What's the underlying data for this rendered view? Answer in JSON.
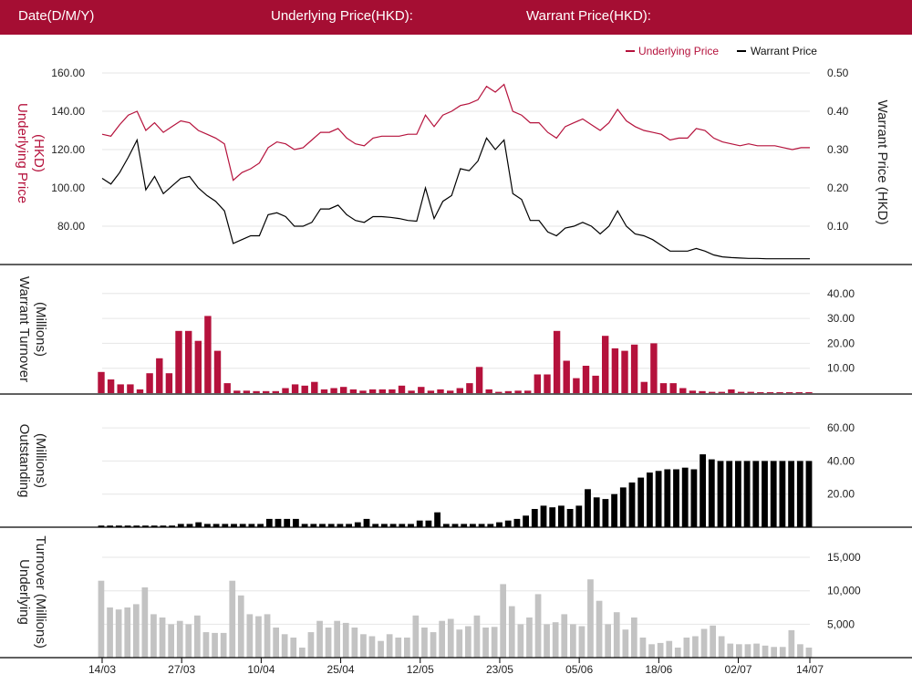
{
  "header": {
    "date_label": "Date(D/M/Y)",
    "underlying_label": "Underlying Price(HKD):",
    "warrant_label": "Warrant Price(HKD):"
  },
  "colors": {
    "header_bg": "#a50e33",
    "underlying": "#b5123c",
    "warrant": "#000000",
    "warrant_turnover": "#b5123c",
    "outstanding": "#000000",
    "underlying_turnover": "#c3c3c3"
  },
  "legend": {
    "underlying": "Underlying Price",
    "warrant": "Warrant Price"
  },
  "chart_data": [
    {
      "type": "line",
      "title": "",
      "ylabel_left": "Underlying Price (HKD)",
      "ylabel_right": "Warrant  Price (HKD)",
      "yticks_left": [
        "80.00",
        "100.00",
        "120.00",
        "140.00",
        "160.00"
      ],
      "yticks_right": [
        "0.10",
        "0.20",
        "0.30",
        "0.40",
        "0.50"
      ],
      "ylim_left": [
        66,
        168
      ],
      "ylim_right": [
        0.0,
        0.52
      ],
      "x_ticks": [
        "14/03",
        "27/03",
        "10/04",
        "25/04",
        "12/05",
        "23/05",
        "05/06",
        "18/06",
        "02/07",
        "14/07"
      ],
      "x_tick_index": [
        0,
        10,
        20,
        30,
        40,
        50,
        60,
        70,
        80,
        89
      ],
      "legend_position": "top-right",
      "series": [
        {
          "name": "Underlying Price",
          "axis": "left",
          "values": [
            128,
            127,
            133,
            138,
            140,
            130,
            134,
            129,
            132,
            135,
            134,
            130,
            128,
            126,
            123,
            104,
            108,
            110,
            113,
            121,
            124,
            123,
            120,
            121,
            125,
            129,
            129,
            131,
            126,
            123,
            122,
            126,
            127,
            127,
            127,
            128,
            128,
            138,
            132,
            138,
            140,
            143,
            144,
            146,
            153,
            150,
            154,
            140,
            138,
            134,
            134,
            129,
            126,
            132,
            134,
            136,
            133,
            130,
            134,
            141,
            135,
            132,
            130,
            129,
            128,
            125,
            126,
            126,
            131,
            130,
            126,
            124,
            123,
            122,
            123,
            122,
            122,
            122,
            121,
            120,
            121,
            121
          ]
        },
        {
          "name": "Warrant Price",
          "axis": "right",
          "values": [
            0.225,
            0.21,
            0.24,
            0.28,
            0.325,
            0.195,
            0.23,
            0.185,
            0.205,
            0.225,
            0.23,
            0.2,
            0.18,
            0.165,
            0.14,
            0.055,
            0.065,
            0.075,
            0.075,
            0.13,
            0.135,
            0.125,
            0.1,
            0.1,
            0.11,
            0.145,
            0.145,
            0.155,
            0.13,
            0.115,
            0.11,
            0.125,
            0.125,
            0.123,
            0.12,
            0.115,
            0.113,
            0.2,
            0.12,
            0.165,
            0.18,
            0.25,
            0.245,
            0.27,
            0.33,
            0.3,
            0.325,
            0.185,
            0.17,
            0.115,
            0.115,
            0.085,
            0.075,
            0.095,
            0.1,
            0.11,
            0.1,
            0.08,
            0.1,
            0.14,
            0.1,
            0.08,
            0.075,
            0.065,
            0.05,
            0.035,
            0.035,
            0.035,
            0.042,
            0.035,
            0.025,
            0.02,
            0.018,
            0.017,
            0.016,
            0.016,
            0.015,
            0.015,
            0.015,
            0.015,
            0.015,
            0.015
          ]
        }
      ]
    },
    {
      "type": "bar",
      "ylabel": "Warrant  Turnover (Millions)",
      "yticks": [
        "10.00",
        "20.00",
        "30.00",
        "40.00"
      ],
      "ylim": [
        0,
        45
      ],
      "series": [
        {
          "name": "",
          "values": [
            8.5,
            5.5,
            3.5,
            3.5,
            1.5,
            8,
            14,
            8,
            25,
            25,
            21,
            31,
            17,
            4,
            1,
            1,
            0.8,
            0.8,
            0.8,
            2,
            3.5,
            3,
            4.5,
            1.5,
            2,
            2.5,
            1.5,
            1,
            1.5,
            1.5,
            1.5,
            3,
            1,
            2.5,
            1,
            1.5,
            1,
            2,
            4,
            10.5,
            1.5,
            0.5,
            0.8,
            1,
            1,
            7.5,
            7.5,
            25,
            13,
            6,
            11,
            7,
            23,
            18,
            17,
            19.5,
            4.5,
            20,
            4,
            4,
            2,
            1,
            0.8,
            0.5,
            0.5,
            1.5,
            0.5,
            0.5,
            0.3,
            0.3,
            0.3,
            0.3,
            0.3,
            0.3
          ]
        }
      ]
    },
    {
      "type": "bar",
      "ylabel": "Outstanding (Millions)",
      "yticks": [
        "20.00",
        "40.00",
        "60.00"
      ],
      "ylim": [
        0,
        66
      ],
      "series": [
        {
          "name": "",
          "values": [
            1,
            1,
            1,
            1,
            1,
            1,
            1,
            1,
            1,
            2,
            2,
            3,
            2,
            2,
            2,
            2,
            2,
            2,
            2,
            5,
            5,
            5,
            5,
            2,
            2,
            2,
            2,
            2,
            2,
            3,
            5,
            2,
            2,
            2,
            2,
            2,
            4,
            4,
            9,
            2,
            2,
            2,
            2,
            2,
            2,
            3,
            4,
            5,
            7,
            11,
            13,
            12,
            13,
            11,
            13,
            23,
            18,
            17,
            20,
            24,
            27,
            30,
            33,
            34,
            35,
            35,
            36,
            35,
            44,
            41,
            40,
            40,
            40,
            40,
            40,
            40,
            40,
            40,
            40,
            40,
            40
          ]
        }
      ]
    },
    {
      "type": "bar",
      "ylabel": "Underlying Turnover (Millions)",
      "yticks": [
        "5,000",
        "10,000",
        "15,000"
      ],
      "ylim": [
        0,
        17000
      ],
      "series": [
        {
          "name": "",
          "values": [
            11500,
            7500,
            7200,
            7500,
            8000,
            10500,
            6500,
            6000,
            5000,
            5500,
            5000,
            6300,
            3800,
            3700,
            3700,
            11500,
            9300,
            6500,
            6200,
            6500,
            4500,
            3500,
            3000,
            1500,
            3800,
            5500,
            4500,
            5500,
            5200,
            4500,
            3500,
            3200,
            2500,
            3500,
            3000,
            3000,
            6300,
            4500,
            3800,
            5500,
            5800,
            4200,
            4700,
            6300,
            4500,
            4600,
            11000,
            7700,
            5000,
            6000,
            9500,
            5000,
            5300,
            6500,
            5000,
            4700,
            11700,
            8500,
            5000,
            6800,
            4200,
            6000,
            3000,
            2000,
            2200,
            2500,
            1500,
            3000,
            3200,
            4300,
            4800,
            3200,
            2100,
            2000,
            2000,
            2100,
            1800,
            1600,
            1600,
            4100,
            2000,
            1500
          ]
        }
      ]
    }
  ]
}
